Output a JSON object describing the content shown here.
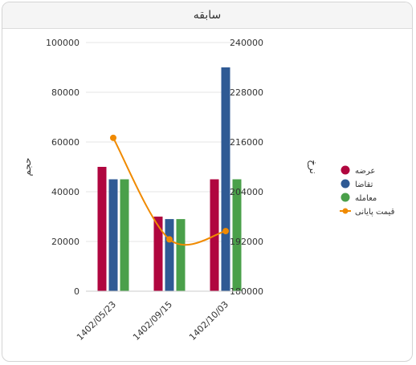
{
  "panel": {
    "title": "سابقه"
  },
  "chart_data": {
    "type": "bar",
    "categories": [
      "1402/05/23",
      "1402/09/15",
      "1402/10/03"
    ],
    "y_left": {
      "label": "حجم",
      "min": 0,
      "max": 100000,
      "ticks": [
        0,
        20000,
        40000,
        60000,
        80000,
        100000
      ]
    },
    "y_right": {
      "label": "نرخ",
      "min": 180000,
      "max": 240000,
      "ticks": [
        180000,
        192000,
        204000,
        216000,
        228000,
        240000
      ]
    },
    "series": [
      {
        "name": "عرضه",
        "type": "bar",
        "axis": "left",
        "color": "#b0063f",
        "values": [
          50000,
          30000,
          45000
        ]
      },
      {
        "name": "تقاضا",
        "type": "bar",
        "axis": "left",
        "color": "#2f5a94",
        "values": [
          45000,
          29000,
          90000
        ]
      },
      {
        "name": "معامله",
        "type": "bar",
        "axis": "left",
        "color": "#4aa04a",
        "values": [
          45000,
          29000,
          45000
        ]
      },
      {
        "name": "قیمت پایانی",
        "type": "line",
        "axis": "right",
        "color": "#f08a00",
        "values": [
          217000,
          192500,
          194500
        ]
      }
    ],
    "legend_position": "right",
    "grid": true
  }
}
